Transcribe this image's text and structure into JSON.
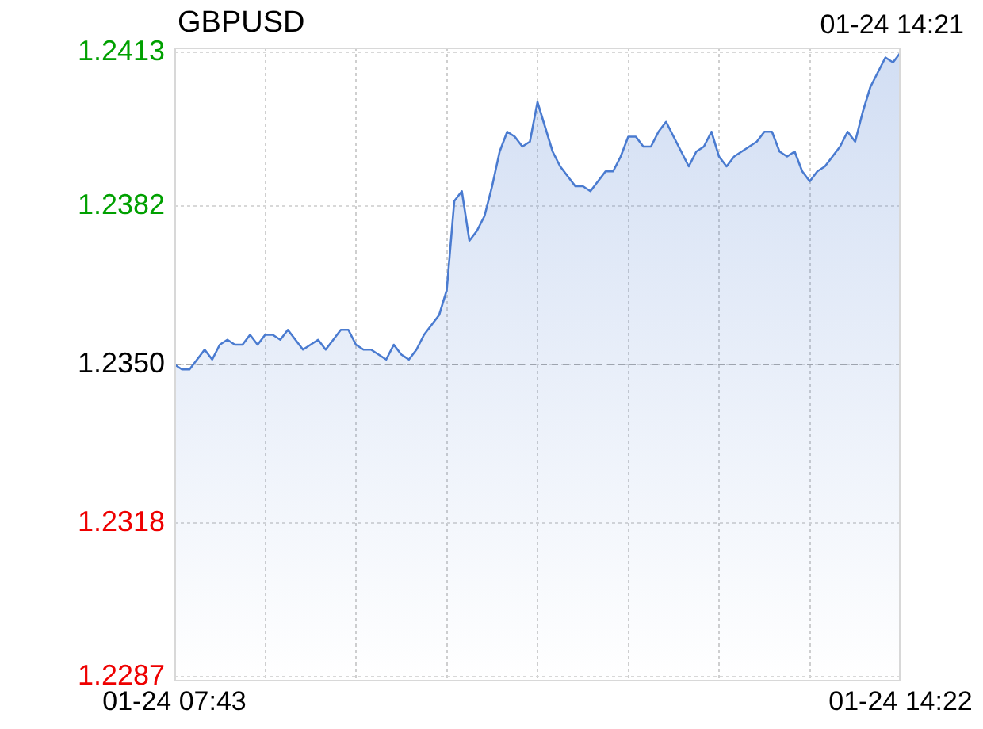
{
  "chart_data": {
    "type": "area",
    "title": "GBPUSD",
    "annotations": [
      "01-24 14:21"
    ],
    "categories": [
      "01-24 07:43",
      null,
      null,
      null,
      null,
      null,
      null,
      null,
      null,
      null,
      null,
      null,
      null,
      null,
      null,
      null,
      null,
      null,
      null,
      null,
      null,
      null,
      null,
      null,
      null,
      null,
      null,
      null,
      null,
      null,
      null,
      null,
      null,
      null,
      null,
      null,
      null,
      null,
      null,
      null,
      null,
      null,
      null,
      null,
      null,
      null,
      null,
      null,
      null,
      null,
      null,
      null,
      null,
      null,
      null,
      null,
      null,
      null,
      null,
      null,
      null,
      null,
      null,
      null,
      null,
      null,
      null,
      null,
      null,
      null,
      null,
      null,
      null,
      null,
      null,
      null,
      null,
      null,
      null,
      null,
      null,
      null,
      null,
      null,
      null,
      null,
      null,
      null,
      null,
      null,
      null,
      null,
      null,
      null,
      null,
      null,
      "01-24 14:22"
    ],
    "ylim": [
      1.2286,
      1.2414
    ],
    "yticks": [
      1.2287,
      1.2318,
      {
        "value": 1.235,
        "label": "1.2350"
      },
      1.2382,
      1.2413
    ],
    "grid": true,
    "ref_lines": [
      {
        "axis": "y",
        "value": 1.235,
        "color": "#aaaaaa",
        "line_style": "dashed"
      }
    ],
    "series": [
      {
        "color": "#4a7bd0",
        "values": [
          1.235,
          1.2349,
          1.2349,
          1.2351,
          1.2353,
          1.2351,
          1.2354,
          1.2355,
          1.2354,
          1.2354,
          1.2356,
          1.2354,
          1.2356,
          1.2356,
          1.2355,
          1.2357,
          1.2355,
          1.2353,
          1.2354,
          1.2355,
          1.2353,
          1.2355,
          1.2357,
          1.2357,
          1.2354,
          1.2353,
          1.2353,
          1.2352,
          1.2351,
          1.2354,
          1.2352,
          1.2351,
          1.2353,
          1.2356,
          1.2358,
          1.236,
          1.2365,
          1.2383,
          1.2385,
          1.2375,
          1.2377,
          1.238,
          1.2386,
          1.2393,
          1.2397,
          1.2396,
          1.2394,
          1.2395,
          1.2403,
          1.2398,
          1.2393,
          1.239,
          1.2388,
          1.2386,
          1.2386,
          1.2385,
          1.2387,
          1.2389,
          1.2389,
          1.2392,
          1.2396,
          1.2396,
          1.2394,
          1.2394,
          1.2397,
          1.2399,
          1.2396,
          1.2393,
          1.239,
          1.2393,
          1.2394,
          1.2397,
          1.2392,
          1.239,
          1.2392,
          1.2393,
          1.2394,
          1.2395,
          1.2397,
          1.2397,
          1.2393,
          1.2392,
          1.2393,
          1.2389,
          1.2387,
          1.2389,
          1.239,
          1.2392,
          1.2394,
          1.2397,
          1.2395,
          1.2401,
          1.2406,
          1.2409,
          1.2412,
          1.2411,
          1.2413
        ]
      }
    ]
  }
}
